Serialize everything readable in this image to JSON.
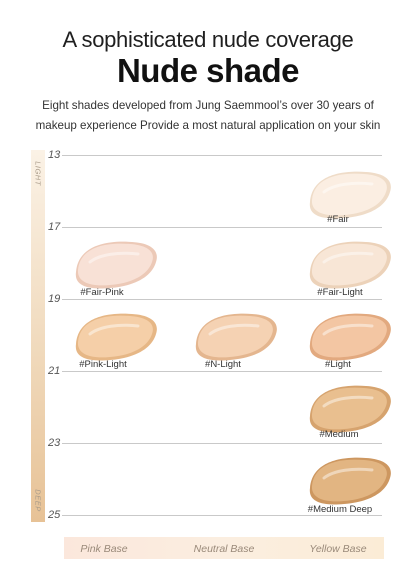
{
  "header": {
    "eyebrow": "A sophisticated nude coverage",
    "title": "Nude shade",
    "description_line1": "Eight shades developed from Jung Saemmool’s over 30 years of",
    "description_line2": "makeup experience Provide a most natural application on your skin"
  },
  "scale": {
    "top_word": "LIGHT",
    "bottom_word": "DEEP",
    "ticks": [
      "13",
      "17",
      "19",
      "21",
      "23",
      "25"
    ]
  },
  "shades": [
    {
      "label": "#Fair",
      "color": "#fbeee2",
      "shadow": "#efdcc8"
    },
    {
      "label": "#Fair-Pink",
      "color": "#f8e1d6",
      "shadow": "#ecc9b7"
    },
    {
      "label": "#Fair-Light",
      "color": "#f8e6d6",
      "shadow": "#ecd2b9"
    },
    {
      "label": "#Pink-Light",
      "color": "#f5cfa8",
      "shadow": "#e6b786"
    },
    {
      "label": "#N-Light",
      "color": "#f5d2b3",
      "shadow": "#e4b68f"
    },
    {
      "label": "#Light",
      "color": "#f3c6a3",
      "shadow": "#e2a97f"
    },
    {
      "label": "#Medium",
      "color": "#e9bf8f",
      "shadow": "#d6a36e"
    },
    {
      "label": "#Medium Deep",
      "color": "#e2b582",
      "shadow": "#cd9760"
    }
  ],
  "bases": [
    "Pink Base",
    "Neutral Base",
    "Yellow Base"
  ]
}
